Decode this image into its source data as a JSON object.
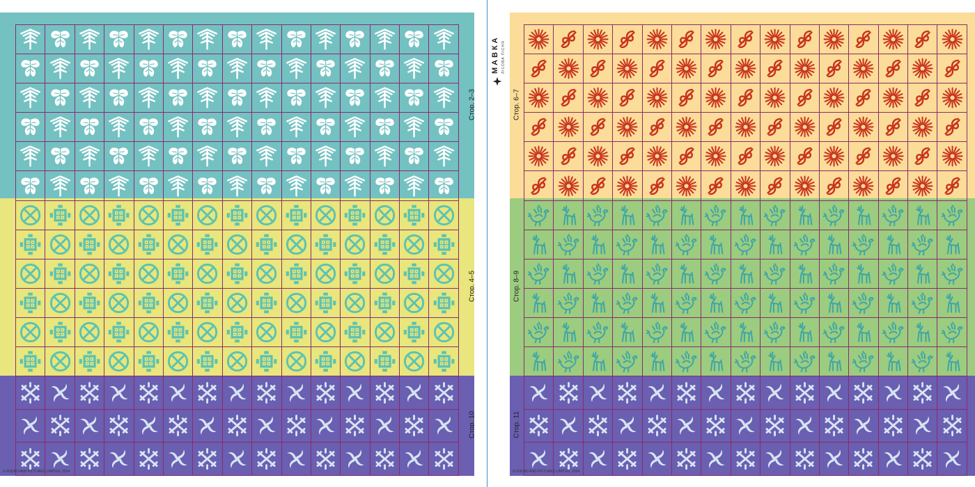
{
  "left_sheet": {
    "sections": [
      {
        "label": "Стор. 2–3",
        "bg": "#74c1c2",
        "icon_color": "#ffffff",
        "rows": 6,
        "icons": [
          "tree-icon",
          "moth-icon"
        ]
      },
      {
        "label": "Стор. 4–5",
        "bg": "#e8e67c",
        "icon_color": "#5cc2b2",
        "rows": 6,
        "icons": [
          "crossed-circle-icon",
          "maze-icon"
        ]
      },
      {
        "label": "Стор. 10",
        "bg": "#6a5fb0",
        "icon_color": "#d6e4f4",
        "rows": 3,
        "icons": [
          "double-cross-icon",
          "swirl-icon"
        ]
      }
    ],
    "copyright": "© FOUND AND PICTURES LIMITED, 2024"
  },
  "right_sheet": {
    "sections": [
      {
        "label": "Стор. 6–7",
        "bg": "#fbdc98",
        "icon_color": "#c8331f",
        "rows": 6,
        "icons": [
          "sun-flower-icon",
          "curl-icon"
        ]
      },
      {
        "label": "Стор. 8–9",
        "bg": "#9ccc7f",
        "icon_color": "#3fa6a6",
        "rows": 6,
        "icons": [
          "bird-icon",
          "deer-icon"
        ]
      },
      {
        "label": "Стор. 11",
        "bg": "#6a5fb0",
        "icon_color": "#d6e4f4",
        "rows": 3,
        "icons": [
          "swirl-icon",
          "double-cross-icon"
        ]
      }
    ],
    "copyright": "© FOUND AND PICTURES LIMITED, 2024"
  },
  "logo": {
    "name": "МАВКА",
    "subtitle": "ЛІСОВА ПІСНЯ"
  },
  "columns": 15,
  "grid_line_color": "#8a2a6e",
  "divider_color": "#3a8fd0"
}
